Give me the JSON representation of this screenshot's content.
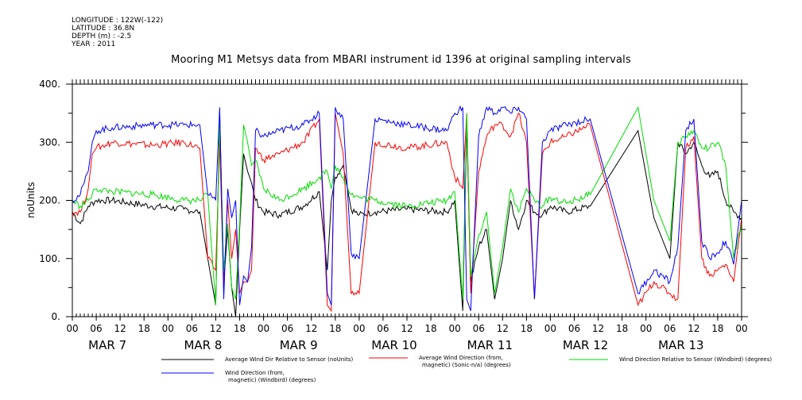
{
  "header": {
    "longitude": "LONGITUDE : 122W(-122)",
    "latitude": "LATITUDE : 36.8N",
    "depth": "DEPTH (m) : -2.5",
    "year": "YEAR : 2011"
  },
  "chart_data": {
    "type": "line",
    "title": "Mooring M1 Metsys data from MBARI instrument id 1396 at original sampling intervals",
    "ylabel": "noUnits",
    "xlabel": "",
    "ylim": [
      0,
      400
    ],
    "yticks": [
      0,
      100,
      200,
      300,
      400
    ],
    "ytick_labels": [
      "0.",
      "100.",
      "200.",
      "300.",
      "400."
    ],
    "xlim": [
      0,
      168
    ],
    "x_units": "hours since MAR 7 00:00 (2011)",
    "x_hour_labels": [
      "00",
      "06",
      "12",
      "18",
      "00",
      "06",
      "12",
      "18",
      "00",
      "06",
      "12",
      "18",
      "00",
      "06",
      "12",
      "18",
      "00",
      "06",
      "12",
      "18",
      "00",
      "06",
      "12",
      "18",
      "00",
      "06",
      "12",
      "18",
      "00"
    ],
    "date_labels": [
      "MAR 7",
      "MAR 8",
      "MAR 9",
      "MAR 10",
      "MAR 11",
      "MAR 12",
      "MAR 13"
    ],
    "grid": false,
    "legend_position": "bottom",
    "colors": {
      "black": "#000000",
      "red": "#ff0000",
      "green": "#00dd00",
      "blue": "#0000ff"
    },
    "series": [
      {
        "name": "Average Wind Dir Relative to Sensor (noUnits)",
        "color": "#000000",
        "x": [
          0,
          2,
          4,
          6,
          10,
          20,
          28,
          32,
          34,
          36,
          37,
          38,
          39,
          40,
          41,
          42,
          43,
          44,
          45,
          46,
          48,
          52,
          58,
          62,
          64,
          65,
          66,
          68,
          70,
          72,
          76,
          84,
          94,
          96,
          98,
          99,
          100,
          102,
          104,
          106,
          108,
          110,
          112,
          114,
          116,
          118,
          120,
          124,
          130,
          142,
          146,
          150,
          152,
          154,
          156,
          158,
          160,
          162,
          164,
          166,
          168
        ],
        "y": [
          180,
          160,
          190,
          200,
          200,
          190,
          185,
          180,
          100,
          20,
          350,
          60,
          150,
          50,
          0,
          150,
          280,
          250,
          230,
          200,
          180,
          175,
          190,
          215,
          80,
          200,
          240,
          260,
          185,
          175,
          180,
          185,
          180,
          200,
          10,
          330,
          60,
          120,
          150,
          30,
          100,
          200,
          150,
          200,
          180,
          175,
          190,
          180,
          190,
          320,
          170,
          100,
          300,
          280,
          300,
          260,
          240,
          250,
          200,
          180,
          170
        ]
      },
      {
        "name": "Average Wind Direction (from, magnetic) (Sonic-n/a) (degrees)",
        "color": "#ff0000",
        "x": [
          0,
          2,
          4,
          5,
          6,
          10,
          20,
          28,
          32,
          34,
          36,
          37,
          38,
          39,
          40,
          41,
          42,
          43,
          44,
          45,
          46,
          48,
          52,
          58,
          62,
          64,
          65,
          66,
          68,
          70,
          72,
          76,
          84,
          94,
          96,
          98,
          99,
          100,
          102,
          104,
          106,
          108,
          110,
          112,
          114,
          116,
          118,
          120,
          124,
          130,
          142,
          146,
          150,
          152,
          154,
          156,
          158,
          160,
          162,
          164,
          166,
          168
        ],
        "y": [
          180,
          180,
          220,
          280,
          290,
          300,
          295,
          300,
          290,
          100,
          80,
          300,
          50,
          200,
          100,
          150,
          40,
          60,
          60,
          80,
          290,
          270,
          280,
          300,
          340,
          20,
          10,
          350,
          280,
          40,
          40,
          300,
          290,
          300,
          240,
          220,
          350,
          40,
          250,
          310,
          330,
          330,
          310,
          350,
          300,
          30,
          280,
          300,
          310,
          330,
          20,
          60,
          40,
          30,
          290,
          310,
          100,
          70,
          80,
          90,
          60,
          170
        ]
      },
      {
        "name": "Wind Direction Relative to Sensor (Windbird) (degrees)",
        "color": "#00dd00",
        "x": [
          0,
          2,
          4,
          6,
          10,
          20,
          28,
          32,
          34,
          36,
          37,
          38,
          39,
          40,
          41,
          42,
          43,
          44,
          45,
          46,
          48,
          52,
          58,
          62,
          64,
          65,
          66,
          68,
          70,
          72,
          76,
          84,
          94,
          96,
          98,
          99,
          100,
          102,
          104,
          106,
          108,
          110,
          112,
          114,
          116,
          118,
          120,
          124,
          130,
          142,
          146,
          150,
          152,
          154,
          156,
          158,
          160,
          162,
          164,
          166,
          168
        ],
        "y": [
          200,
          190,
          200,
          220,
          215,
          210,
          200,
          200,
          210,
          20,
          340,
          80,
          160,
          50,
          30,
          160,
          330,
          300,
          260,
          270,
          220,
          200,
          220,
          240,
          250,
          220,
          260,
          240,
          210,
          205,
          200,
          190,
          200,
          215,
          30,
          350,
          70,
          140,
          180,
          40,
          120,
          220,
          180,
          220,
          200,
          190,
          205,
          195,
          210,
          360,
          200,
          130,
          300,
          310,
          320,
          290,
          290,
          300,
          260,
          100,
          160
        ]
      },
      {
        "name": "Wind Direction (from, magnetic) (Windbird) (degrees)",
        "color": "#0000ff",
        "x": [
          0,
          2,
          4,
          5,
          6,
          10,
          20,
          28,
          32,
          34,
          36,
          37,
          38,
          39,
          40,
          41,
          42,
          43,
          44,
          45,
          46,
          48,
          52,
          58,
          62,
          64,
          65,
          66,
          68,
          70,
          72,
          76,
          84,
          94,
          96,
          98,
          99,
          100,
          102,
          104,
          106,
          108,
          110,
          112,
          114,
          116,
          118,
          120,
          124,
          130,
          142,
          146,
          150,
          152,
          154,
          156,
          158,
          160,
          162,
          164,
          166,
          168
        ],
        "y": [
          200,
          210,
          250,
          300,
          320,
          325,
          330,
          330,
          330,
          210,
          200,
          360,
          30,
          220,
          170,
          200,
          20,
          70,
          60,
          120,
          320,
          310,
          320,
          330,
          350,
          40,
          20,
          360,
          340,
          110,
          100,
          340,
          330,
          320,
          350,
          360,
          30,
          10,
          310,
          360,
          350,
          360,
          350,
          360,
          340,
          30,
          300,
          320,
          330,
          340,
          40,
          80,
          60,
          120,
          320,
          340,
          130,
          100,
          110,
          130,
          90,
          200
        ]
      }
    ]
  },
  "legend": {
    "items": [
      {
        "line1": "Average Wind Dir Relative to Sensor (noUnits)",
        "line2": ""
      },
      {
        "line1": "Average Wind Direction (from,",
        "line2": "magnetic) (Sonic-n/a) (degrees)"
      },
      {
        "line1": "Wind Direction Relative to Sensor (Windbird) (degrees)",
        "line2": ""
      },
      {
        "line1": "Wind Direction (from,",
        "line2": "magnetic) (Windbird) (degrees)"
      }
    ]
  }
}
